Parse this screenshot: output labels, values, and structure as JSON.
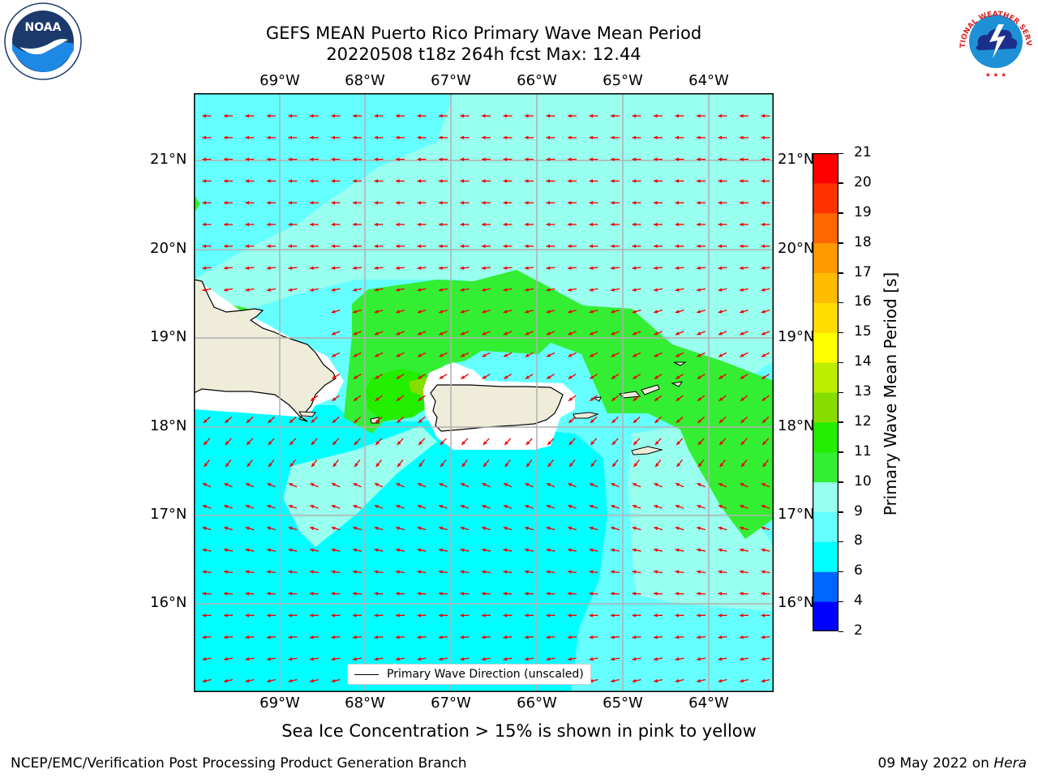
{
  "header": {
    "title_line1": "GEFS MEAN Puerto Rico Primary Wave Mean Period",
    "title_line2": "20220508 t18z 264h fcst   Max: 12.44"
  },
  "logos": {
    "left_name": "NOAA",
    "right_name": "NATIONAL WEATHER SERVICE"
  },
  "map": {
    "lon_labels": [
      "69°W",
      "68°W",
      "67°W",
      "66°W",
      "65°W",
      "64°W"
    ],
    "lat_labels": [
      "21°N",
      "20°N",
      "19°N",
      "18°N",
      "17°N",
      "16°N"
    ],
    "legend_label": "Primary Wave Direction (unscaled)",
    "colors": {
      "land": "#efedda",
      "ocean_6_8": "#00ffff",
      "ocean_8_9": "#66ffff",
      "ocean_9_10": "#99ffee",
      "ocean_10_11": "#33ee33",
      "ocean_11_12": "#22ee00",
      "ocean_12_13": "#88dd00",
      "arrow": "#ee0000",
      "grid": "#b0b0b0"
    }
  },
  "colorbar": {
    "label": "Primary Wave Mean Period [s]",
    "ticks": [
      "2",
      "4",
      "6",
      "8",
      "9",
      "10",
      "11",
      "12",
      "13",
      "14",
      "15",
      "16",
      "17",
      "18",
      "19",
      "20",
      "21"
    ],
    "colors": [
      "#0000ff",
      "#0066ff",
      "#00ffff",
      "#66ffff",
      "#99ffee",
      "#33ee33",
      "#22ee00",
      "#88dd00",
      "#bbee00",
      "#ffff00",
      "#ffdd00",
      "#ffbb00",
      "#ff9900",
      "#ff6600",
      "#ff3300",
      "#ff0000"
    ]
  },
  "caption": "Sea Ice Concentration > 15% is shown in pink to yellow",
  "footer": {
    "left": "NCEP/EMC/Verification Post Processing Product Generation Branch",
    "date": "09 May 2022 on ",
    "machine": "Hera"
  }
}
